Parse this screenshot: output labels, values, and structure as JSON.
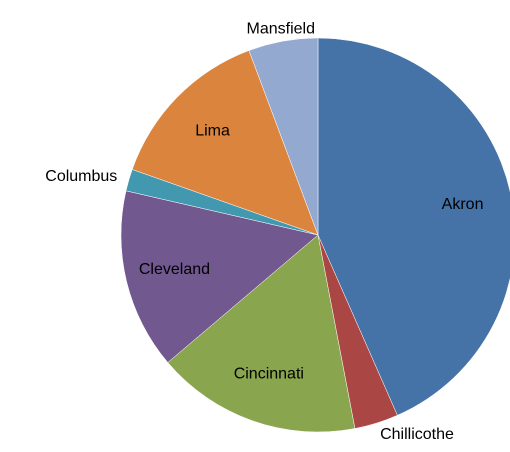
{
  "chart_data": {
    "type": "pie",
    "categories": [
      "Akron",
      "Chillicothe",
      "Cincinnati",
      "Cleveland",
      "Columbus",
      "Lima",
      "Mansfield"
    ],
    "values": [
      43.4,
      3.6,
      16.8,
      14.8,
      1.8,
      13.9,
      5.7
    ],
    "colors": [
      "#4572a7",
      "#aa4643",
      "#89a54e",
      "#71588f",
      "#4198af",
      "#db843d",
      "#93a9cf"
    ]
  }
}
